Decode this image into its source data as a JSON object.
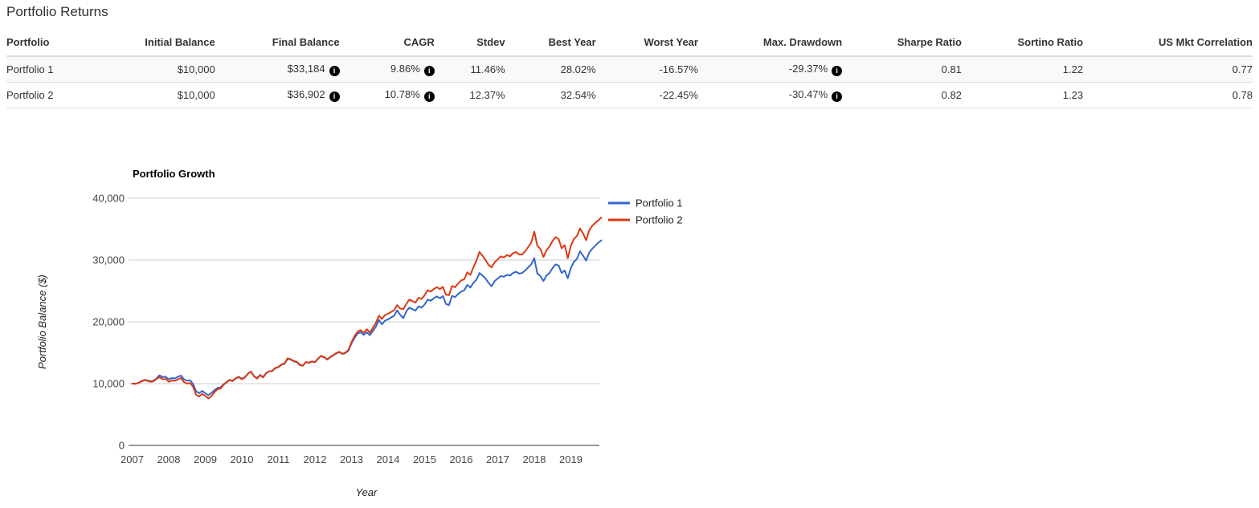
{
  "page": {
    "title": "Portfolio Returns"
  },
  "table": {
    "columns": [
      {
        "label": "Portfolio"
      },
      {
        "label": "Initial Balance"
      },
      {
        "label": "Final Balance"
      },
      {
        "label": "CAGR"
      },
      {
        "label": "Stdev"
      },
      {
        "label": "Best Year"
      },
      {
        "label": "Worst Year"
      },
      {
        "label": "Max. Drawdown"
      },
      {
        "label": "Sharpe Ratio"
      },
      {
        "label": "Sortino Ratio"
      },
      {
        "label": "US Mkt Correlation"
      }
    ],
    "rows": [
      {
        "name": "Portfolio 1",
        "cells": [
          {
            "text": "$10,000"
          },
          {
            "text": "$33,184",
            "info": true
          },
          {
            "text": "9.86%",
            "info": true
          },
          {
            "text": "11.46%"
          },
          {
            "text": "28.02%"
          },
          {
            "text": "-16.57%"
          },
          {
            "text": "-29.37%",
            "info": true
          },
          {
            "text": "0.81"
          },
          {
            "text": "1.22"
          },
          {
            "text": "0.77"
          }
        ]
      },
      {
        "name": "Portfolio 2",
        "cells": [
          {
            "text": "$10,000"
          },
          {
            "text": "$36,902",
            "info": true
          },
          {
            "text": "10.78%",
            "info": true
          },
          {
            "text": "12.37%"
          },
          {
            "text": "32.54%"
          },
          {
            "text": "-22.45%"
          },
          {
            "text": "-30.47%",
            "info": true
          },
          {
            "text": "0.82"
          },
          {
            "text": "1.23"
          },
          {
            "text": "0.78"
          }
        ]
      }
    ]
  },
  "chart_data": {
    "type": "line",
    "title": "Portfolio Growth",
    "xlabel": "Year",
    "ylabel": "Portfolio Balance ($)",
    "x_start_year": 2007,
    "points_per_year": 12,
    "x_ticks": [
      2007,
      2008,
      2009,
      2010,
      2011,
      2012,
      2013,
      2014,
      2015,
      2016,
      2017,
      2018,
      2019
    ],
    "y_ticks": [
      0,
      10000,
      20000,
      30000,
      40000
    ],
    "ylim": [
      0,
      40000
    ],
    "legend_position": "right",
    "grid": true,
    "series": [
      {
        "name": "Portfolio 1",
        "color": "#3366cc",
        "values": [
          10000,
          9980,
          10120,
          10380,
          10600,
          10520,
          10380,
          10480,
          10850,
          11350,
          11050,
          11100,
          10700,
          10900,
          10850,
          11100,
          11300,
          10700,
          10450,
          10550,
          9950,
          8750,
          8450,
          8800,
          8450,
          8100,
          8450,
          8950,
          9300,
          9400,
          9900,
          10250,
          10600,
          10450,
          10900,
          11100,
          10800,
          11050,
          11600,
          11950,
          11200,
          10900,
          11400,
          11050,
          11700,
          12000,
          12050,
          12500,
          12650,
          13050,
          13200,
          14000,
          13900,
          13600,
          13500,
          13000,
          12900,
          13450,
          13350,
          13550,
          13450,
          14000,
          14450,
          14250,
          13900,
          14250,
          14550,
          14900,
          15100,
          14800,
          14950,
          15350,
          16500,
          17400,
          18100,
          18300,
          17900,
          18300,
          17850,
          18500,
          19200,
          20300,
          19600,
          20200,
          20400,
          20700,
          21000,
          21850,
          21100,
          20600,
          21700,
          22300,
          22050,
          21800,
          22500,
          22300,
          22800,
          23600,
          23400,
          23800,
          24100,
          23800,
          24150,
          22900,
          22700,
          24200,
          24000,
          24500,
          24900,
          25100,
          25970,
          25550,
          26300,
          26800,
          27900,
          27500,
          27000,
          26300,
          25750,
          26600,
          27000,
          27400,
          27300,
          27600,
          27500,
          27900,
          28100,
          27800,
          27900,
          28300,
          28800,
          29300,
          30300,
          27800,
          27400,
          26600,
          27500,
          27900,
          28700,
          29300,
          29100,
          27900,
          28300,
          27050,
          28700,
          29700,
          30200,
          31400,
          30700,
          29900,
          31200,
          31800,
          32300,
          32800,
          33184
        ]
      },
      {
        "name": "Portfolio 2",
        "color": "#dc3912",
        "values": [
          10000,
          9950,
          10100,
          10350,
          10550,
          10450,
          10280,
          10380,
          10750,
          11050,
          10700,
          10750,
          10300,
          10500,
          10450,
          10700,
          10900,
          10250,
          10000,
          10100,
          9500,
          8200,
          7900,
          8350,
          8000,
          7600,
          7950,
          8600,
          9100,
          9200,
          9800,
          10200,
          10600,
          10400,
          10850,
          11050,
          10700,
          11000,
          11600,
          11950,
          11150,
          10820,
          11350,
          11000,
          11700,
          12000,
          12050,
          12550,
          12700,
          13100,
          13250,
          14100,
          13950,
          13650,
          13550,
          13050,
          12900,
          13500,
          13400,
          13600,
          13500,
          14050,
          14500,
          14300,
          13950,
          14300,
          14600,
          14950,
          15150,
          14850,
          15000,
          15450,
          16700,
          17700,
          18400,
          18650,
          18250,
          18800,
          18250,
          19000,
          19800,
          21000,
          20450,
          21100,
          21300,
          21600,
          21900,
          22700,
          22150,
          22050,
          22900,
          23600,
          23350,
          23100,
          23900,
          23700,
          24300,
          25100,
          24900,
          25300,
          25600,
          25300,
          25650,
          24400,
          24300,
          25800,
          25600,
          26200,
          26700,
          26900,
          28000,
          27600,
          28800,
          29900,
          31300,
          30700,
          30000,
          29200,
          28800,
          29650,
          30100,
          30600,
          30400,
          30800,
          30600,
          31100,
          31300,
          30900,
          30900,
          31400,
          32100,
          32800,
          34600,
          32300,
          31800,
          30500,
          31600,
          32200,
          33100,
          33700,
          33400,
          31900,
          32400,
          30300,
          32300,
          33400,
          33900,
          35100,
          34300,
          33200,
          34800,
          35500,
          36000,
          36400,
          36902
        ]
      }
    ]
  }
}
